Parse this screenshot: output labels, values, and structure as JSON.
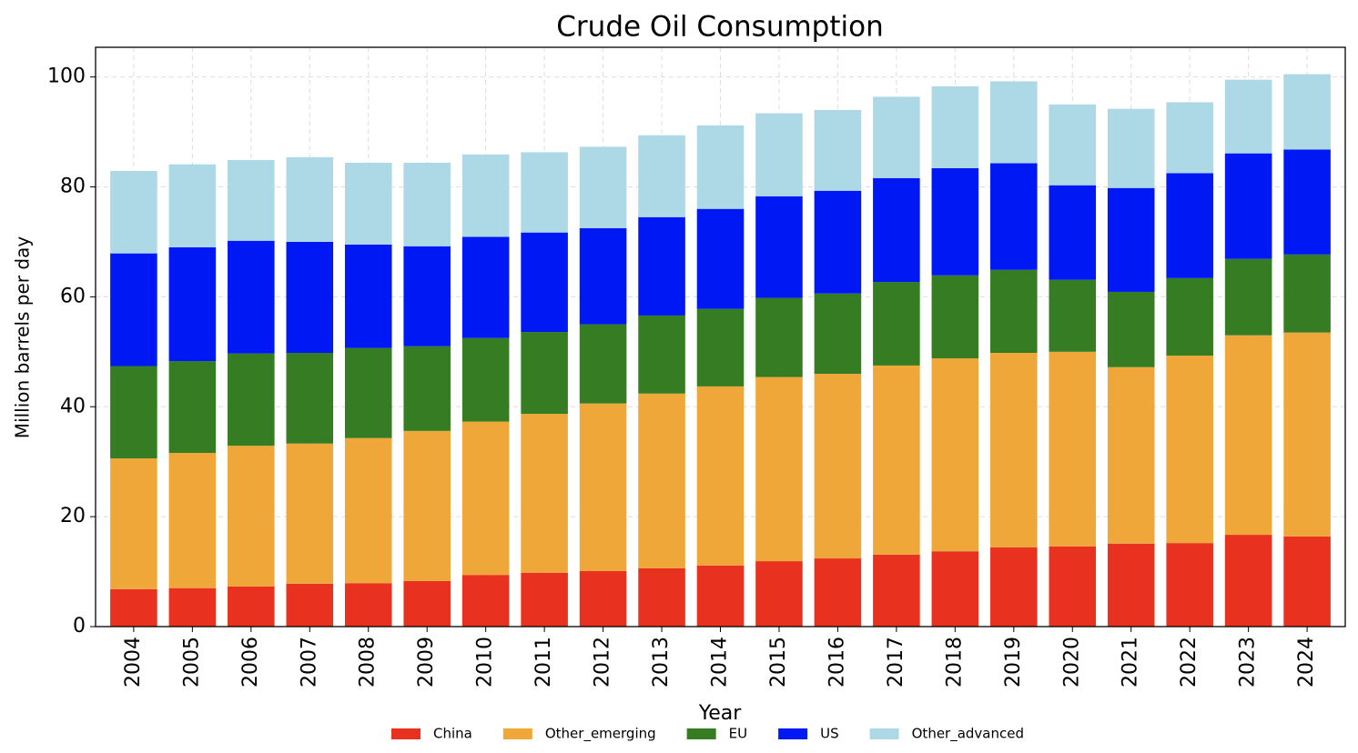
{
  "chart_data": {
    "type": "stacked_bar",
    "title": "Crude Oil Consumption",
    "x_label": "Year",
    "y_label": "Million barrels per day",
    "categories": [
      "2004",
      "2005",
      "2006",
      "2007",
      "2008",
      "2009",
      "2010",
      "2011",
      "2012",
      "2013",
      "2014",
      "2015",
      "2016",
      "2017",
      "2018",
      "2019",
      "2020",
      "2021",
      "2022",
      "2023",
      "2024"
    ],
    "series": [
      {
        "name": "China",
        "color": "#e8321f",
        "values": [
          6.8,
          7.0,
          7.3,
          7.8,
          7.9,
          8.3,
          9.4,
          9.8,
          10.1,
          10.6,
          11.1,
          11.9,
          12.4,
          13.1,
          13.7,
          14.4,
          14.6,
          15.1,
          15.2,
          16.7,
          16.4
        ]
      },
      {
        "name": "Other_emerging",
        "color": "#f0a73a",
        "values": [
          23.8,
          24.6,
          25.6,
          25.5,
          26.4,
          27.3,
          27.9,
          28.9,
          30.5,
          31.8,
          32.6,
          33.5,
          33.6,
          34.4,
          35.1,
          35.4,
          35.4,
          32.1,
          34.1,
          36.3,
          37.1
        ]
      },
      {
        "name": "EU",
        "color": "#357c23",
        "values": [
          16.8,
          16.7,
          16.8,
          16.5,
          16.4,
          15.4,
          15.2,
          14.9,
          14.4,
          14.2,
          14.1,
          14.4,
          14.6,
          15.2,
          15.1,
          15.1,
          13.1,
          13.7,
          14.1,
          13.9,
          14.2
        ]
      },
      {
        "name": "US",
        "color": "#0019f4",
        "values": [
          20.5,
          20.7,
          20.5,
          20.2,
          18.8,
          18.2,
          18.4,
          18.1,
          17.5,
          17.9,
          18.2,
          18.5,
          18.7,
          18.9,
          19.5,
          19.4,
          17.2,
          18.9,
          19.1,
          19.2,
          19.1
        ]
      },
      {
        "name": "Other_advanced",
        "color": "#add8e6",
        "values": [
          15.0,
          15.1,
          14.7,
          15.4,
          14.9,
          15.2,
          15.0,
          14.6,
          14.8,
          14.9,
          15.2,
          15.1,
          14.7,
          14.8,
          14.9,
          14.9,
          14.7,
          14.4,
          12.9,
          13.4,
          13.7
        ]
      }
    ],
    "ylim": [
      0,
      105.4
    ],
    "yticks": [
      0,
      20,
      40,
      60,
      80,
      100
    ],
    "grid": true,
    "legend": "bottom"
  }
}
